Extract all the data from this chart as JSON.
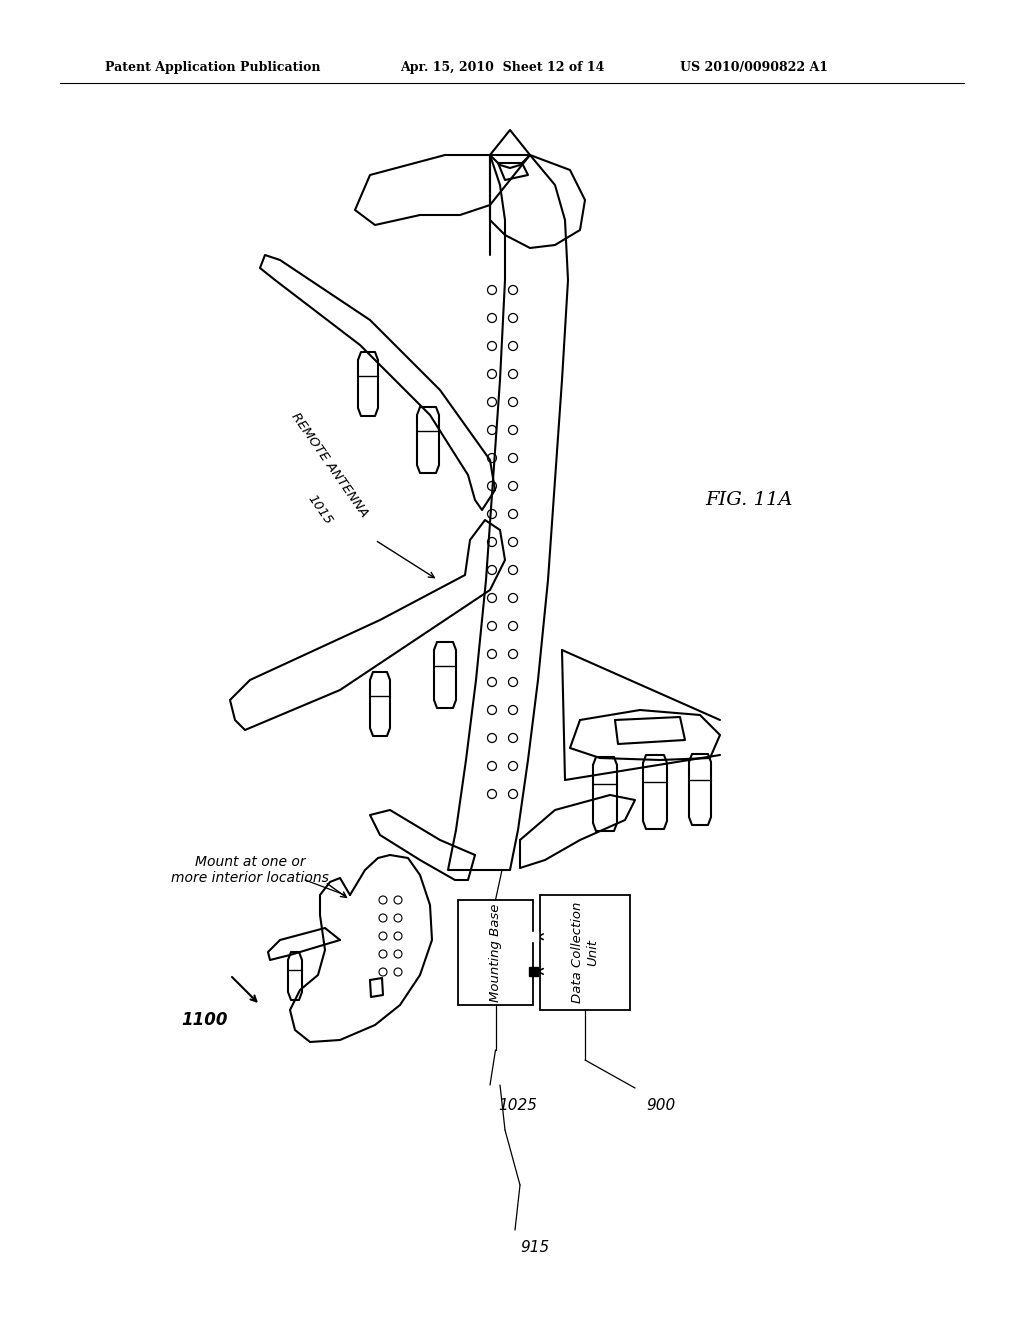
{
  "background_color": "#ffffff",
  "line_color": "#000000",
  "header_left": "Patent Application Publication",
  "header_mid": "Apr. 15, 2010  Sheet 12 of 14",
  "header_right": "US 2010/0090822 A1",
  "fig_label": "FIG. 11A",
  "labels": {
    "remote_antenna_line1": "REMOTE ANTENNA",
    "remote_antenna_line2": "1015",
    "mount_interior": "Mount at one or\nmore interior locations",
    "mounting_base": "Mounting Base",
    "data_collection": "Data Collection\nUnit",
    "ref_1100": "1100",
    "ref_1025": "1025",
    "ref_900": "900",
    "ref_915": "915"
  }
}
